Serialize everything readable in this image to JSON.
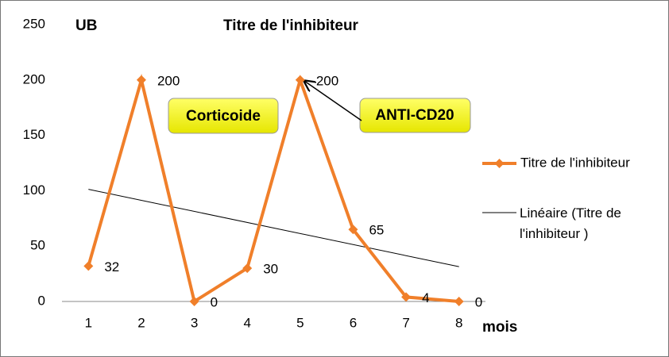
{
  "chart_data": {
    "type": "line",
    "title": "Titre de l'inhibiteur",
    "y_label": "UB",
    "x_label": "mois",
    "categories": [
      "1",
      "2",
      "3",
      "4",
      "5",
      "6",
      "7",
      "8"
    ],
    "series": [
      {
        "name": "Titre de l'inhibiteur",
        "color": "#f07f2a",
        "values": [
          32,
          200,
          0,
          30,
          200,
          65,
          4,
          0
        ]
      }
    ],
    "trend": {
      "name": "Linéaire (Titre de l'inhibiteur )",
      "color": "#000000",
      "start": 101.3,
      "end": 31.4
    },
    "ylim": [
      0,
      250
    ],
    "yticks": [
      0,
      50,
      100,
      150,
      200,
      250
    ],
    "annotations": [
      {
        "text": "Corticoide"
      },
      {
        "text": "ANTI-CD20"
      }
    ]
  }
}
